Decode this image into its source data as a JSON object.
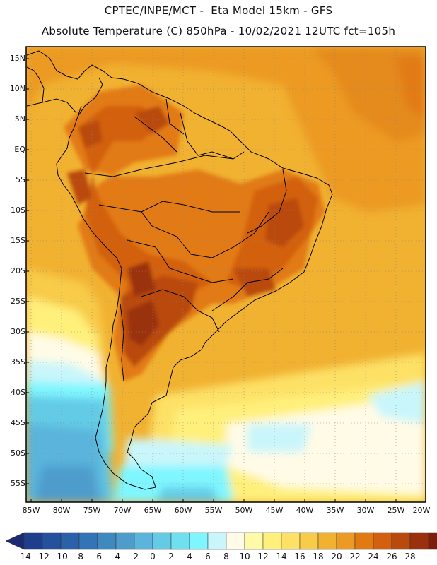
{
  "header": {
    "title_line1": "CPTEC/INPE/MCT -  Eta Model 15km - GFS",
    "title_line2": "Absolute Temperature (C) 850hPa - 10/02/2021 12UTC fct=105h"
  },
  "map": {
    "lat_labels": [
      "15N",
      "10N",
      "5N",
      "EQ",
      "5S",
      "10S",
      "15S",
      "20S",
      "25S",
      "30S",
      "35S",
      "40S",
      "45S",
      "50S",
      "55S"
    ],
    "lon_labels": [
      "85W",
      "80W",
      "75W",
      "70W",
      "65W",
      "60W",
      "55W",
      "50W",
      "45W",
      "40W",
      "35W",
      "30W",
      "25W",
      "20W"
    ]
  },
  "colorbar": {
    "labels": [
      "-14",
      "-12",
      "-10",
      "-8",
      "-6",
      "-4",
      "-2",
      "0",
      "2",
      "4",
      "6",
      "8",
      "10",
      "12",
      "14",
      "16",
      "18",
      "20",
      "22",
      "24",
      "26",
      "28"
    ],
    "colors": [
      "#1e3f8c",
      "#24519b",
      "#2a61a8",
      "#3274b5",
      "#3f88c0",
      "#4d9ccc",
      "#5ab4db",
      "#64cbe6",
      "#6fe0f0",
      "#7ff6ff",
      "#c9f6fb",
      "#fffbe6",
      "#fffaa6",
      "#fff07c",
      "#fde166",
      "#f8cb49",
      "#f1b131",
      "#ec9a24",
      "#e27a12",
      "#d3600e",
      "#b94a0e",
      "#9a300d",
      "#7c1e0b"
    ],
    "left_arrow": "#1b2b72",
    "right_arrow": "#6c0b15"
  }
}
